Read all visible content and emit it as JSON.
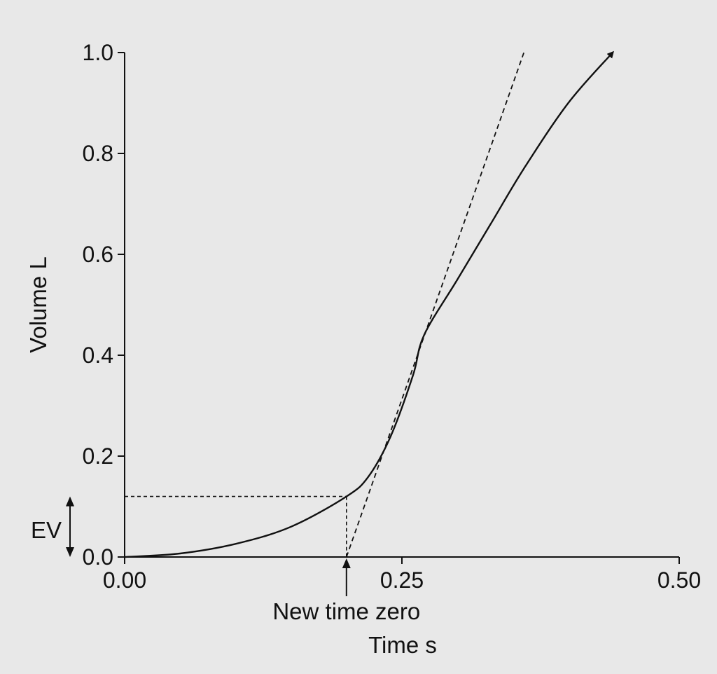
{
  "chart_data": {
    "type": "line",
    "xlabel": "Time s",
    "ylabel": "Volume L",
    "xlim": [
      0,
      0.5
    ],
    "ylim": [
      0,
      1.0
    ],
    "x_ticks": [
      0,
      0.25,
      0.5
    ],
    "x_tick_labels": [
      "0.00",
      "0.25",
      "0.50"
    ],
    "y_ticks": [
      0,
      0.2,
      0.4,
      0.6,
      0.8,
      1.0
    ],
    "y_tick_labels": [
      "0.0",
      "0.2",
      "0.4",
      "0.6",
      "0.8",
      "1.0"
    ],
    "grid": false,
    "series": [
      {
        "style": "solid",
        "arrow_end": true,
        "x": [
          0.0,
          0.05,
          0.1,
          0.15,
          0.2,
          0.22,
          0.24,
          0.26,
          0.27,
          0.3,
          0.33,
          0.36,
          0.4,
          0.44
        ],
        "y": [
          0.0,
          0.007,
          0.026,
          0.06,
          0.12,
          0.16,
          0.24,
          0.36,
          0.44,
          0.55,
          0.66,
          0.77,
          0.9,
          1.0
        ]
      },
      {
        "style": "dashed",
        "x": [
          0.2,
          0.36
        ],
        "y": [
          0.0,
          1.0
        ]
      }
    ],
    "annotations": {
      "ev_label": "EV",
      "ev_value": 0.12,
      "new_time_zero_label": "New time zero",
      "new_time_zero_x": 0.2
    }
  }
}
